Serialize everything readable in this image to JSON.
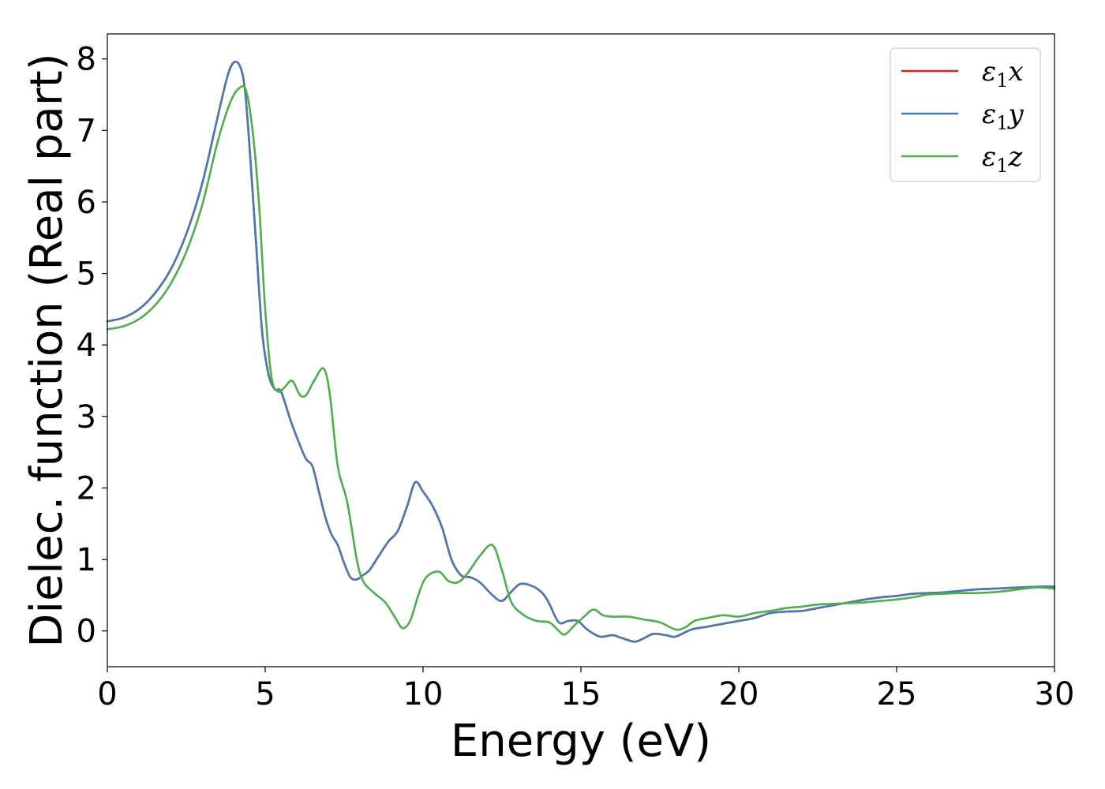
{
  "chart_data": {
    "type": "line",
    "title": "",
    "xlabel": "Energy (eV)",
    "ylabel": "Dielec. function (Real part)",
    "xlim": [
      0,
      30
    ],
    "ylim": [
      -0.5,
      8.35
    ],
    "xticks": [
      0,
      5,
      10,
      15,
      20,
      25,
      30
    ],
    "yticks": [
      0,
      1,
      2,
      3,
      4,
      5,
      6,
      7,
      8
    ],
    "grid": false,
    "legend_position": "top-right",
    "series": [
      {
        "name": "ε1x",
        "legend_base": "ε",
        "legend_sub": "1",
        "legend_tail": "x",
        "color": "#e41a1c",
        "x": [
          0,
          0.5,
          1,
          1.5,
          2,
          2.5,
          3,
          3.5,
          3.8,
          4.0,
          4.2,
          4.35,
          4.5,
          4.7,
          4.9,
          5.1,
          5.3,
          5.5,
          5.8,
          6.1,
          6.3,
          6.5,
          6.7,
          6.9,
          7.1,
          7.3,
          7.5,
          7.7,
          7.9,
          8.1,
          8.3,
          8.6,
          8.9,
          9.2,
          9.5,
          9.75,
          10.0,
          10.3,
          10.6,
          10.9,
          11.2,
          11.5,
          11.8,
          12.2,
          12.5,
          12.8,
          13.1,
          13.5,
          13.8,
          14.0,
          14.3,
          14.6,
          14.9,
          15.2,
          15.6,
          16.0,
          16.3,
          16.7,
          17.0,
          17.3,
          17.7,
          18.0,
          18.5,
          19.0,
          19.5,
          20.0,
          20.5,
          21.0,
          21.5,
          22.0,
          22.5,
          23.0,
          23.5,
          24.0,
          24.5,
          25.0,
          25.5,
          26.0,
          26.5,
          27.0,
          27.5,
          28.0,
          28.5,
          29.0,
          29.5,
          30.0
        ],
        "y": [
          4.33,
          4.38,
          4.5,
          4.72,
          5.05,
          5.55,
          6.25,
          7.2,
          7.75,
          7.95,
          7.9,
          7.6,
          6.8,
          5.5,
          4.2,
          3.6,
          3.38,
          3.35,
          2.95,
          2.6,
          2.4,
          2.3,
          1.95,
          1.6,
          1.35,
          1.2,
          0.95,
          0.75,
          0.72,
          0.78,
          0.85,
          1.05,
          1.25,
          1.4,
          1.75,
          2.08,
          1.95,
          1.75,
          1.45,
          1.0,
          0.78,
          0.75,
          0.68,
          0.5,
          0.42,
          0.55,
          0.66,
          0.62,
          0.52,
          0.38,
          0.12,
          0.14,
          0.14,
          0.02,
          -0.08,
          -0.06,
          -0.1,
          -0.15,
          -0.1,
          -0.04,
          -0.06,
          -0.08,
          0.02,
          0.06,
          0.1,
          0.14,
          0.18,
          0.25,
          0.27,
          0.28,
          0.32,
          0.36,
          0.4,
          0.44,
          0.47,
          0.49,
          0.52,
          0.53,
          0.54,
          0.56,
          0.58,
          0.59,
          0.6,
          0.61,
          0.62,
          0.62
        ]
      },
      {
        "name": "ε1y",
        "legend_base": "ε",
        "legend_sub": "1",
        "legend_tail": "y",
        "color": "#4a7ab5",
        "x": [
          0,
          0.5,
          1,
          1.5,
          2,
          2.5,
          3,
          3.5,
          3.8,
          4.0,
          4.2,
          4.35,
          4.5,
          4.7,
          4.9,
          5.1,
          5.3,
          5.5,
          5.8,
          6.1,
          6.3,
          6.5,
          6.7,
          6.9,
          7.1,
          7.3,
          7.5,
          7.7,
          7.9,
          8.1,
          8.3,
          8.6,
          8.9,
          9.2,
          9.5,
          9.75,
          10.0,
          10.3,
          10.6,
          10.9,
          11.2,
          11.5,
          11.8,
          12.2,
          12.5,
          12.8,
          13.1,
          13.5,
          13.8,
          14.0,
          14.3,
          14.6,
          14.9,
          15.2,
          15.6,
          16.0,
          16.3,
          16.7,
          17.0,
          17.3,
          17.7,
          18.0,
          18.5,
          19.0,
          19.5,
          20.0,
          20.5,
          21.0,
          21.5,
          22.0,
          22.5,
          23.0,
          23.5,
          24.0,
          24.5,
          25.0,
          25.5,
          26.0,
          26.5,
          27.0,
          27.5,
          28.0,
          28.5,
          29.0,
          29.5,
          30.0
        ],
        "y": [
          4.33,
          4.38,
          4.5,
          4.72,
          5.05,
          5.55,
          6.25,
          7.2,
          7.75,
          7.95,
          7.9,
          7.6,
          6.8,
          5.5,
          4.2,
          3.6,
          3.38,
          3.35,
          2.95,
          2.6,
          2.4,
          2.3,
          1.95,
          1.6,
          1.35,
          1.2,
          0.95,
          0.75,
          0.72,
          0.78,
          0.85,
          1.05,
          1.25,
          1.4,
          1.75,
          2.08,
          1.95,
          1.75,
          1.45,
          1.0,
          0.78,
          0.75,
          0.68,
          0.5,
          0.42,
          0.55,
          0.66,
          0.62,
          0.52,
          0.38,
          0.12,
          0.14,
          0.14,
          0.02,
          -0.08,
          -0.06,
          -0.1,
          -0.15,
          -0.1,
          -0.04,
          -0.06,
          -0.08,
          0.02,
          0.06,
          0.1,
          0.14,
          0.18,
          0.25,
          0.27,
          0.28,
          0.32,
          0.36,
          0.4,
          0.44,
          0.47,
          0.49,
          0.52,
          0.53,
          0.54,
          0.56,
          0.58,
          0.59,
          0.6,
          0.61,
          0.62,
          0.62
        ]
      },
      {
        "name": "ε1z",
        "legend_base": "ε",
        "legend_sub": "1",
        "legend_tail": "z",
        "color": "#4daf4a",
        "x": [
          0,
          0.5,
          1,
          1.5,
          2,
          2.5,
          3,
          3.5,
          3.9,
          4.2,
          4.4,
          4.6,
          4.8,
          5.0,
          5.2,
          5.4,
          5.6,
          5.85,
          6.1,
          6.3,
          6.55,
          6.85,
          7.05,
          7.3,
          7.6,
          7.9,
          8.1,
          8.4,
          8.8,
          9.1,
          9.35,
          9.6,
          9.85,
          10.1,
          10.5,
          10.8,
          11.1,
          11.4,
          11.8,
          12.2,
          12.5,
          12.8,
          13.2,
          13.6,
          14.0,
          14.3,
          14.5,
          14.8,
          15.1,
          15.4,
          15.7,
          16.0,
          16.5,
          17.0,
          17.5,
          18.0,
          18.3,
          18.6,
          19.0,
          19.5,
          20.0,
          20.5,
          21.0,
          21.5,
          22.0,
          22.5,
          23.0,
          23.5,
          24.0,
          24.5,
          25.0,
          25.5,
          26.0,
          26.5,
          27.0,
          27.5,
          28.0,
          28.5,
          29.0,
          29.5,
          30.0
        ],
        "y": [
          4.22,
          4.26,
          4.36,
          4.55,
          4.85,
          5.3,
          5.95,
          6.85,
          7.4,
          7.6,
          7.55,
          7.0,
          6.0,
          4.5,
          3.55,
          3.35,
          3.4,
          3.5,
          3.3,
          3.3,
          3.5,
          3.67,
          3.3,
          2.3,
          1.8,
          1.0,
          0.7,
          0.55,
          0.4,
          0.2,
          0.04,
          0.15,
          0.5,
          0.75,
          0.83,
          0.7,
          0.68,
          0.8,
          1.05,
          1.2,
          0.85,
          0.4,
          0.22,
          0.14,
          0.12,
          0.0,
          -0.05,
          0.08,
          0.2,
          0.3,
          0.22,
          0.2,
          0.2,
          0.16,
          0.12,
          0.02,
          0.05,
          0.14,
          0.18,
          0.22,
          0.2,
          0.25,
          0.28,
          0.32,
          0.34,
          0.37,
          0.38,
          0.39,
          0.4,
          0.42,
          0.44,
          0.47,
          0.51,
          0.52,
          0.53,
          0.53,
          0.54,
          0.56,
          0.59,
          0.61,
          0.59
        ]
      }
    ]
  }
}
